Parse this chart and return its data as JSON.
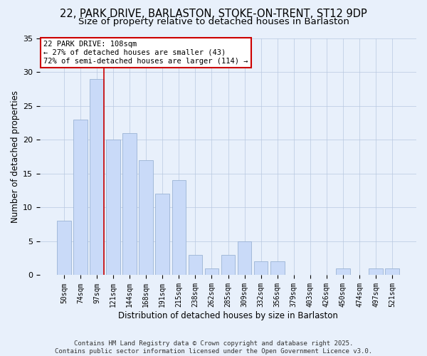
{
  "title_line1": "22, PARK DRIVE, BARLASTON, STOKE-ON-TRENT, ST12 9DP",
  "title_line2": "Size of property relative to detached houses in Barlaston",
  "xlabel": "Distribution of detached houses by size in Barlaston",
  "ylabel": "Number of detached properties",
  "categories": [
    "50sqm",
    "74sqm",
    "97sqm",
    "121sqm",
    "144sqm",
    "168sqm",
    "191sqm",
    "215sqm",
    "238sqm",
    "262sqm",
    "285sqm",
    "309sqm",
    "332sqm",
    "356sqm",
    "379sqm",
    "403sqm",
    "426sqm",
    "450sqm",
    "474sqm",
    "497sqm",
    "521sqm"
  ],
  "values": [
    8,
    23,
    29,
    20,
    21,
    17,
    12,
    14,
    3,
    1,
    3,
    5,
    2,
    2,
    0,
    0,
    0,
    1,
    0,
    1,
    1
  ],
  "bar_color": "#c9daf8",
  "bar_edge_color": "#9ab3d5",
  "background_color": "#e8f0fb",
  "vline_x_index": 2,
  "vline_color": "#cc0000",
  "annotation_text": "22 PARK DRIVE: 108sqm\n← 27% of detached houses are smaller (43)\n72% of semi-detached houses are larger (114) →",
  "annotation_box_color": "#ffffff",
  "annotation_box_edge": "#cc0000",
  "footer_text": "Contains HM Land Registry data © Crown copyright and database right 2025.\nContains public sector information licensed under the Open Government Licence v3.0.",
  "ylim": [
    0,
    35
  ],
  "yticks": [
    0,
    5,
    10,
    15,
    20,
    25,
    30,
    35
  ],
  "grid_color": "#b8c8e0",
  "title_fontsize": 10.5,
  "subtitle_fontsize": 9.5,
  "tick_fontsize": 7,
  "label_fontsize": 8.5,
  "footer_fontsize": 6.5
}
